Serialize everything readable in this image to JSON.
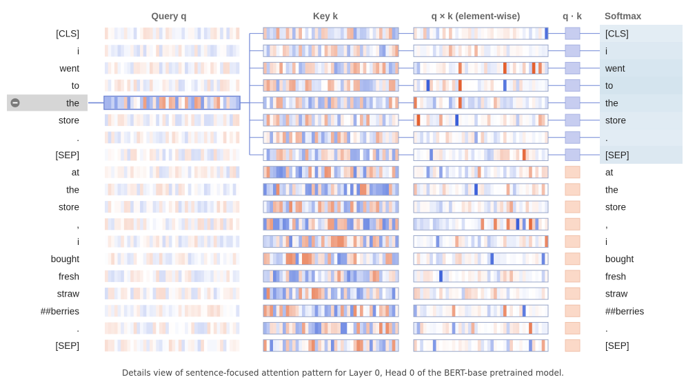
{
  "headers": {
    "query": "Query q",
    "key": "Key k",
    "product": "q × k (element-wise)",
    "dot": "q · k",
    "softmax": "Softmax"
  },
  "left_tokens": [
    "[CLS]",
    "i",
    "went",
    "to",
    "the",
    "store",
    ".",
    "[SEP]",
    "at",
    "the",
    "store",
    ",",
    "i",
    "bought",
    "fresh",
    "straw",
    "##berries",
    ".",
    "[SEP]"
  ],
  "right_tokens": [
    "[CLS]",
    "i",
    "went",
    "to",
    "the",
    "store",
    ".",
    "[SEP]",
    "at",
    "the",
    "store",
    ",",
    "i",
    "bought",
    "fresh",
    "straw",
    "##berries",
    ".",
    "[SEP]"
  ],
  "selected_index": 4,
  "softmax_weights": [
    0.08,
    0.12,
    0.16,
    0.18,
    0.14,
    0.1,
    0.09,
    0.13,
    0,
    0,
    0,
    0,
    0,
    0,
    0,
    0,
    0,
    0,
    0
  ],
  "colors": {
    "positive": "#e4602f",
    "negative": "#3a5fd9",
    "selection": "#d6d6d6",
    "connector": "#6f86d6",
    "softmax": "#d3e3ee"
  },
  "caption": "Details view of sentence-focused attention pattern for Layer 0, Head 0 of the BERT-base pretrained model."
}
